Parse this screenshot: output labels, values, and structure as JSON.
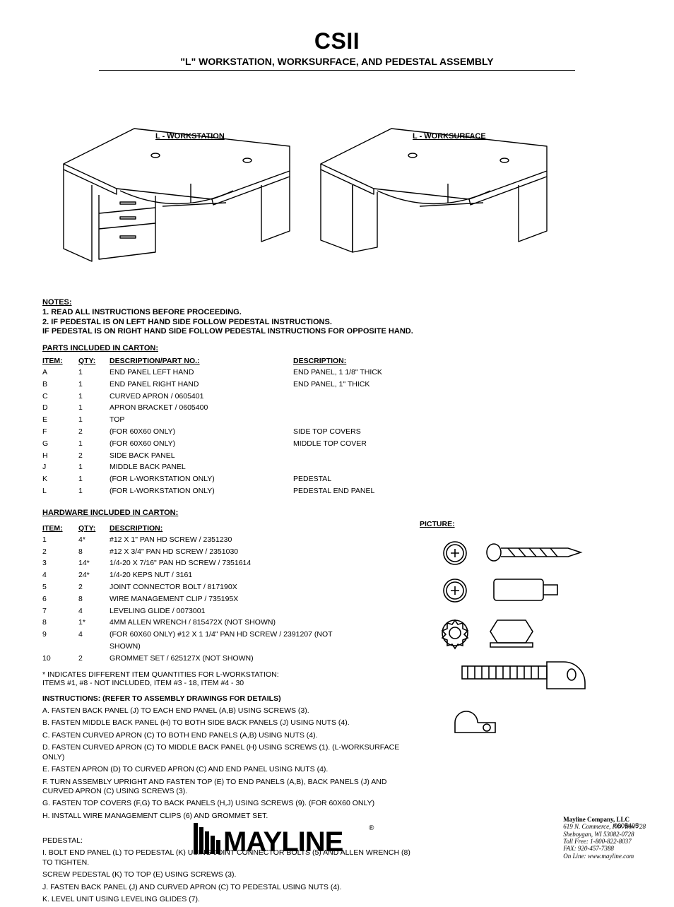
{
  "title": {
    "line1": "CSII",
    "line2": "\"L\" WORKSTATION, WORKSURFACE, AND PEDESTAL ASSEMBLY"
  },
  "figures": {
    "left_label": "L - WORKSTATION",
    "right_label": "L - WORKSURFACE"
  },
  "notes_label": "NOTES:",
  "notes": [
    "1.  READ ALL INSTRUCTIONS BEFORE PROCEEDING.",
    "2.  IF PEDESTAL IS ON LEFT HAND SIDE FOLLOW PEDESTAL INSTRUCTIONS.",
    "    IF PEDESTAL IS ON RIGHT HAND SIDE FOLLOW PEDESTAL INSTRUCTIONS FOR OPPOSITE HAND."
  ],
  "parts": {
    "heading": "PARTS INCLUDED IN CARTON:",
    "cols": {
      "item": "ITEM:",
      "qty": "QTY:",
      "desc": "DESCRIPTION/PART NO.:",
      "desc2": "DESCRIPTION:"
    },
    "rows": [
      {
        "item": "A",
        "qty": "1",
        "desc": "END PANEL LEFT HAND",
        "desc2": "END PANEL, 1 1/8\" THICK"
      },
      {
        "item": "B",
        "qty": "1",
        "desc": "END PANEL RIGHT HAND",
        "desc2": "END PANEL, 1\" THICK"
      },
      {
        "item": "C",
        "qty": "1",
        "desc": "CURVED APRON / 0605401",
        "desc2": ""
      },
      {
        "item": "D",
        "qty": "1",
        "desc": "APRON BRACKET / 0605400",
        "desc2": ""
      },
      {
        "item": "E",
        "qty": "1",
        "desc": "TOP",
        "desc2": ""
      },
      {
        "item": "F",
        "qty": "2",
        "desc": "(FOR 60X60 ONLY)",
        "desc2": "SIDE TOP COVERS"
      },
      {
        "item": "G",
        "qty": "1",
        "desc": "(FOR 60X60 ONLY)",
        "desc2": "MIDDLE TOP COVER"
      },
      {
        "item": "H",
        "qty": "2",
        "desc": "SIDE BACK PANEL",
        "desc2": ""
      },
      {
        "item": "J",
        "qty": "1",
        "desc": "MIDDLE BACK PANEL",
        "desc2": ""
      },
      {
        "item": "K",
        "qty": "1",
        "desc": "(FOR L-WORKSTATION ONLY)",
        "desc2": "PEDESTAL"
      },
      {
        "item": "L",
        "qty": "1",
        "desc": "(FOR L-WORKSTATION ONLY)",
        "desc2": "PEDESTAL END PANEL"
      }
    ]
  },
  "hardware": {
    "heading": "HARDWARE INCLUDED IN CARTON:",
    "cols": {
      "item": "ITEM:",
      "qty": "QTY:",
      "desc": "DESCRIPTION:",
      "pic": "PICTURE:"
    },
    "rows": [
      {
        "item": "1",
        "qty": "4*",
        "desc": "#12 X 1\" PAN HD SCREW / 2351230"
      },
      {
        "item": "2",
        "qty": "8",
        "desc": "#12 X 3/4\" PAN HD SCREW / 2351030"
      },
      {
        "item": "3",
        "qty": "14*",
        "desc": "1/4-20 X 7/16\" PAN HD SCREW / 7351614"
      },
      {
        "item": "4",
        "qty": "24*",
        "desc": "1/4-20 KEPS NUT / 3161"
      },
      {
        "item": "5",
        "qty": "2",
        "desc": "JOINT CONNECTOR BOLT / 817190X"
      },
      {
        "item": "6",
        "qty": "8",
        "desc": "WIRE MANAGEMENT CLIP / 735195X"
      },
      {
        "item": "7",
        "qty": "4",
        "desc": "LEVELING GLIDE / 0073001"
      },
      {
        "item": "8",
        "qty": "1*",
        "desc": "4MM ALLEN WRENCH / 815472X (NOT SHOWN)"
      },
      {
        "item": "9",
        "qty": "4",
        "desc": "(FOR 60X60 ONLY) #12 X 1 1/4\" PAN HD SCREW / 2391207 (NOT SHOWN)"
      },
      {
        "item": "10",
        "qty": "2",
        "desc": "GROMMET SET / 625127X (NOT SHOWN)"
      }
    ],
    "note_star": "* INDICATES DIFFERENT ITEM QUANTITIES FOR L-WORKSTATION:\n  ITEMS #1, #8 - NOT INCLUDED, ITEM #3 - 18, ITEM #4 - 30"
  },
  "instructions": {
    "intro": "INSTRUCTIONS:   (REFER TO ASSEMBLY DRAWINGS FOR DETAILS)",
    "steps": [
      "A.  FASTEN BACK PANEL (J) TO EACH END PANEL (A,B) USING SCREWS (3).",
      "B.  FASTEN MIDDLE BACK PANEL (H) TO BOTH SIDE BACK PANELS (J) USING NUTS (4).",
      "C.  FASTEN CURVED APRON (C) TO BOTH END PANELS (A,B) USING NUTS (4).",
      "D.  FASTEN CURVED APRON (C) TO MIDDLE BACK PANEL (H) USING SCREWS (1). (L-WORKSURFACE ONLY)",
      "E.  FASTEN APRON (D) TO CURVED APRON (C) AND END PANEL USING NUTS (4).",
      "F.  TURN ASSEMBLY UPRIGHT AND FASTEN TOP (E) TO END PANELS (A,B), BACK PANELS (J) AND CURVED APRON (C) USING SCREWS (3).",
      "G.  FASTEN TOP COVERS (F,G) TO BACK PANELS (H,J) USING SCREWS (9). (FOR 60X60 ONLY)",
      "H.  INSTALL WIRE MANAGEMENT CLIPS (6) AND GROMMET SET.",
      "",
      "PEDESTAL:",
      "I.    BOLT END PANEL (L) TO PEDESTAL (K) USING JOINT CONNECTOR BOLTS (5) AND ALLEN WRENCH (8) TO TIGHTEN.",
      "     SCREW PEDESTAL (K) TO TOP (E) USING SCREWS (3).",
      "J.  FASTEN BACK PANEL (J) AND CURVED APRON (C) TO PEDESTAL USING NUTS (4).",
      "K.  LEVEL UNIT USING LEVELING GLIDES (7)."
    ]
  },
  "footer": {
    "company": "Mayline Company, LLC",
    "addr1": "619 N. Commerce, P.O. Box 728",
    "addr2": "Sheboygan, WI   53082-0728",
    "toll": "Toll Free:  1-800-822-8037",
    "fax": "FAX:          920-457-7388",
    "web": "On Line:   www.mayline.com",
    "pageno": "0605405"
  }
}
